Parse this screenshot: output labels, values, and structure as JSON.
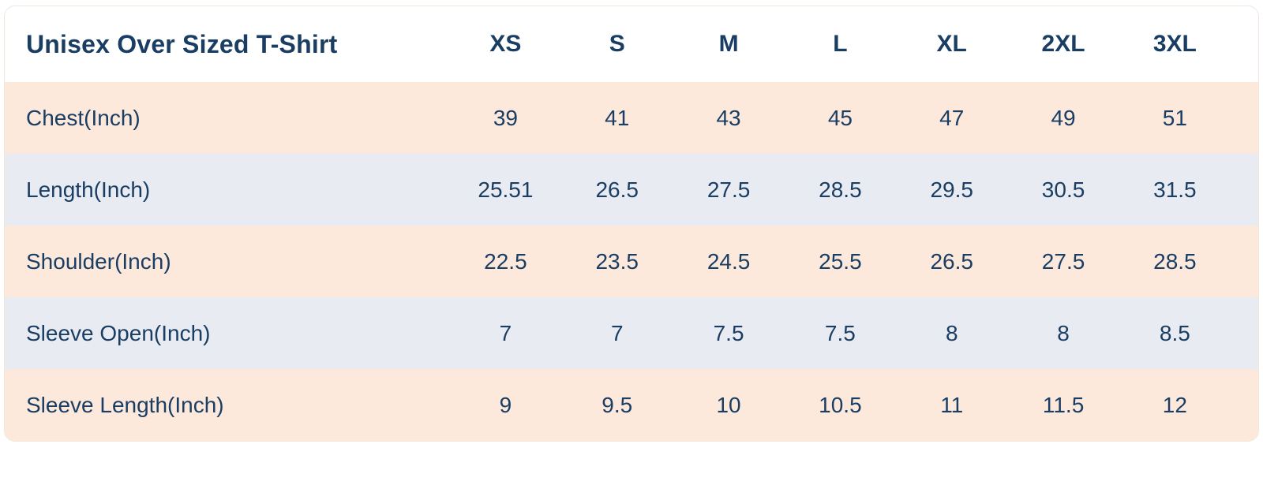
{
  "chart_data": {
    "type": "table",
    "title": "Unisex Over Sized T-Shirt",
    "columns": [
      "XS",
      "S",
      "M",
      "L",
      "XL",
      "2XL",
      "3XL"
    ],
    "rows": [
      {
        "label": "Chest(Inch)",
        "values": [
          "39",
          "41",
          "43",
          "45",
          "47",
          "49",
          "51"
        ]
      },
      {
        "label": "Length(Inch)",
        "values": [
          "25.51",
          "26.5",
          "27.5",
          "28.5",
          "29.5",
          "30.5",
          "31.5"
        ]
      },
      {
        "label": "Shoulder(Inch)",
        "values": [
          "22.5",
          "23.5",
          "24.5",
          "25.5",
          "26.5",
          "27.5",
          "28.5"
        ]
      },
      {
        "label": "Sleeve Open(Inch)",
        "values": [
          "7",
          "7",
          "7.5",
          "7.5",
          "8",
          "8",
          "8.5"
        ]
      },
      {
        "label": "Sleeve Length(Inch)",
        "values": [
          "9",
          "9.5",
          "10",
          "10.5",
          "11",
          "11.5",
          "12"
        ]
      }
    ],
    "units": "Inch",
    "colors": {
      "text_navy": "#1a3e63",
      "row_peach": "#fce9dc",
      "row_blue_gray": "#e8ebf2",
      "header_background": "#ffffff",
      "card_border": "#f1e5dc"
    },
    "layout": {
      "row_striping": [
        "peach",
        "blue-gray",
        "peach",
        "blue-gray",
        "peach"
      ],
      "grid": false
    }
  }
}
